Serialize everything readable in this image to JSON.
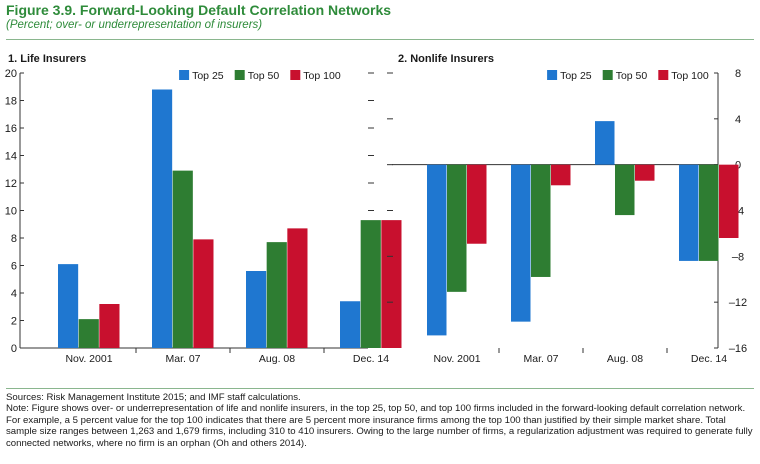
{
  "figure": {
    "title": "Figure 3.9. Forward-Looking Default Correlation Networks",
    "subtitle": "(Percent; over- or underrepresentation of insurers)"
  },
  "colors": {
    "Top 25": "#1f77d0",
    "Top 50": "#2e7d32",
    "Top 100": "#c8102e",
    "accent": "#2e8b3a"
  },
  "chart_data": [
    {
      "type": "bar",
      "title": "1. Life Insurers",
      "categories": [
        "Nov. 2001",
        "Mar. 07",
        "Aug. 08",
        "Dec. 14"
      ],
      "series": [
        {
          "name": "Top 25",
          "values": [
            6.1,
            18.8,
            5.6,
            3.4
          ]
        },
        {
          "name": "Top 50",
          "values": [
            2.1,
            12.9,
            7.7,
            9.3
          ]
        },
        {
          "name": "Top 100",
          "values": [
            3.2,
            7.9,
            8.7,
            9.3
          ]
        }
      ],
      "ylim": [
        0,
        20
      ],
      "yticks": [
        0,
        2,
        4,
        6,
        8,
        10,
        12,
        14,
        16,
        18,
        20
      ],
      "ytick_labels": [
        "0",
        "2",
        "4",
        "6",
        "8",
        "10",
        "12",
        "14",
        "16",
        "18",
        "20"
      ],
      "axis_side": "left",
      "legend": "top-right"
    },
    {
      "type": "bar",
      "title": "2. Nonlife Insurers",
      "categories": [
        "Nov. 2001",
        "Mar. 07",
        "Aug. 08",
        "Dec. 14"
      ],
      "series": [
        {
          "name": "Top 25",
          "values": [
            -14.9,
            -13.7,
            3.8,
            -8.4
          ]
        },
        {
          "name": "Top 50",
          "values": [
            -11.1,
            -9.8,
            -4.4,
            -8.4
          ]
        },
        {
          "name": "Top 100",
          "values": [
            -6.9,
            -1.8,
            -1.4,
            -6.4
          ]
        }
      ],
      "ylim": [
        -16,
        8
      ],
      "yticks": [
        -16,
        -12,
        -8,
        -4,
        0,
        4,
        8
      ],
      "ytick_labels": [
        "–16",
        "–12",
        "–8",
        "–4",
        "0",
        "4",
        "8"
      ],
      "axis_side": "right",
      "legend": "top-right"
    }
  ],
  "notes": {
    "sources": "Sources: Risk Management Institute 2015; and IMF staff calculations.",
    "note": "Note: Figure shows over- or underrepresentation of life and nonlife insurers, in the top 25, top 50, and top 100 firms included in the forward-looking default correlation network. For example, a 5 percent value for the top 100 indicates that there are 5 percent more insurance firms among the top 100 than justified by their simple market share. Total sample size ranges between 1,263 and 1,679 firms, including 310 to 410 insurers. Owing to the large number of firms, a regularization adjustment was required to generate fully connected networks, where no firm is an orphan (Oh and others 2014)."
  }
}
